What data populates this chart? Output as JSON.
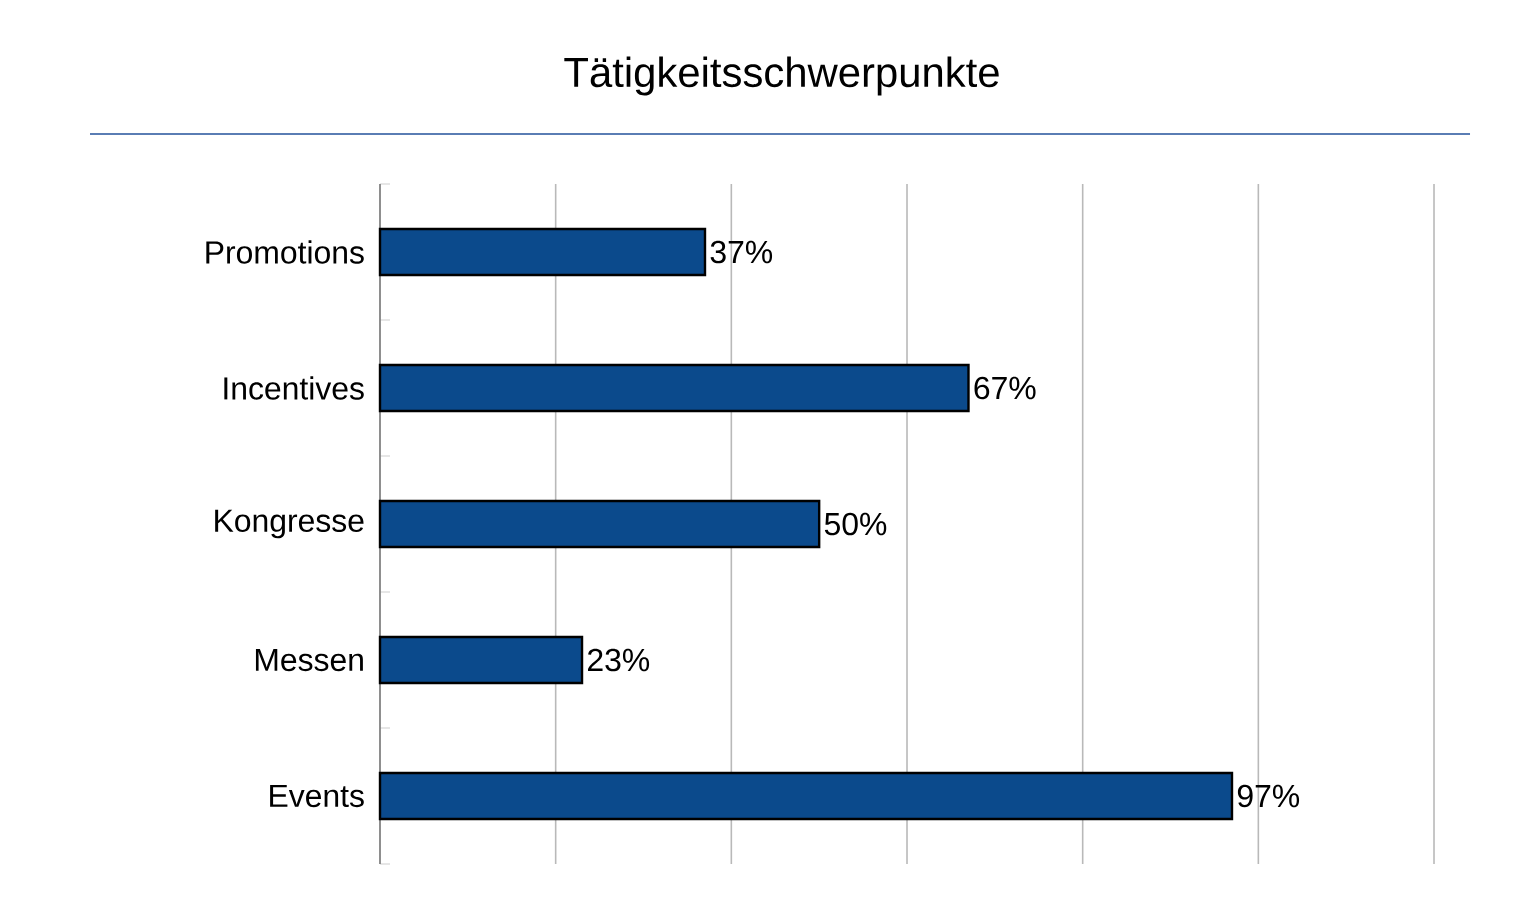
{
  "chart_data": {
    "type": "bar",
    "orientation": "horizontal",
    "title": "Tätigkeitsschwerpunkte",
    "categories": [
      "Promotions",
      "Incentives",
      "Kongresse",
      "Messen",
      "Events"
    ],
    "values": [
      37,
      67,
      50,
      23,
      97
    ],
    "value_labels": [
      "37%",
      "67%",
      "50%",
      "23%",
      "97%"
    ],
    "color": "#0b4a8c",
    "xlim": [
      0,
      120
    ],
    "xticks": [
      {
        "value": 0,
        "label": null
      },
      {
        "value": 20,
        "label": null
      },
      {
        "value": 40,
        "label": null
      },
      {
        "value": 60,
        "label": null
      },
      {
        "value": 80,
        "label": null
      },
      {
        "value": 100,
        "label": null
      },
      {
        "value": 120,
        "label": null
      }
    ],
    "tick_labels": "y",
    "grid": "x"
  }
}
